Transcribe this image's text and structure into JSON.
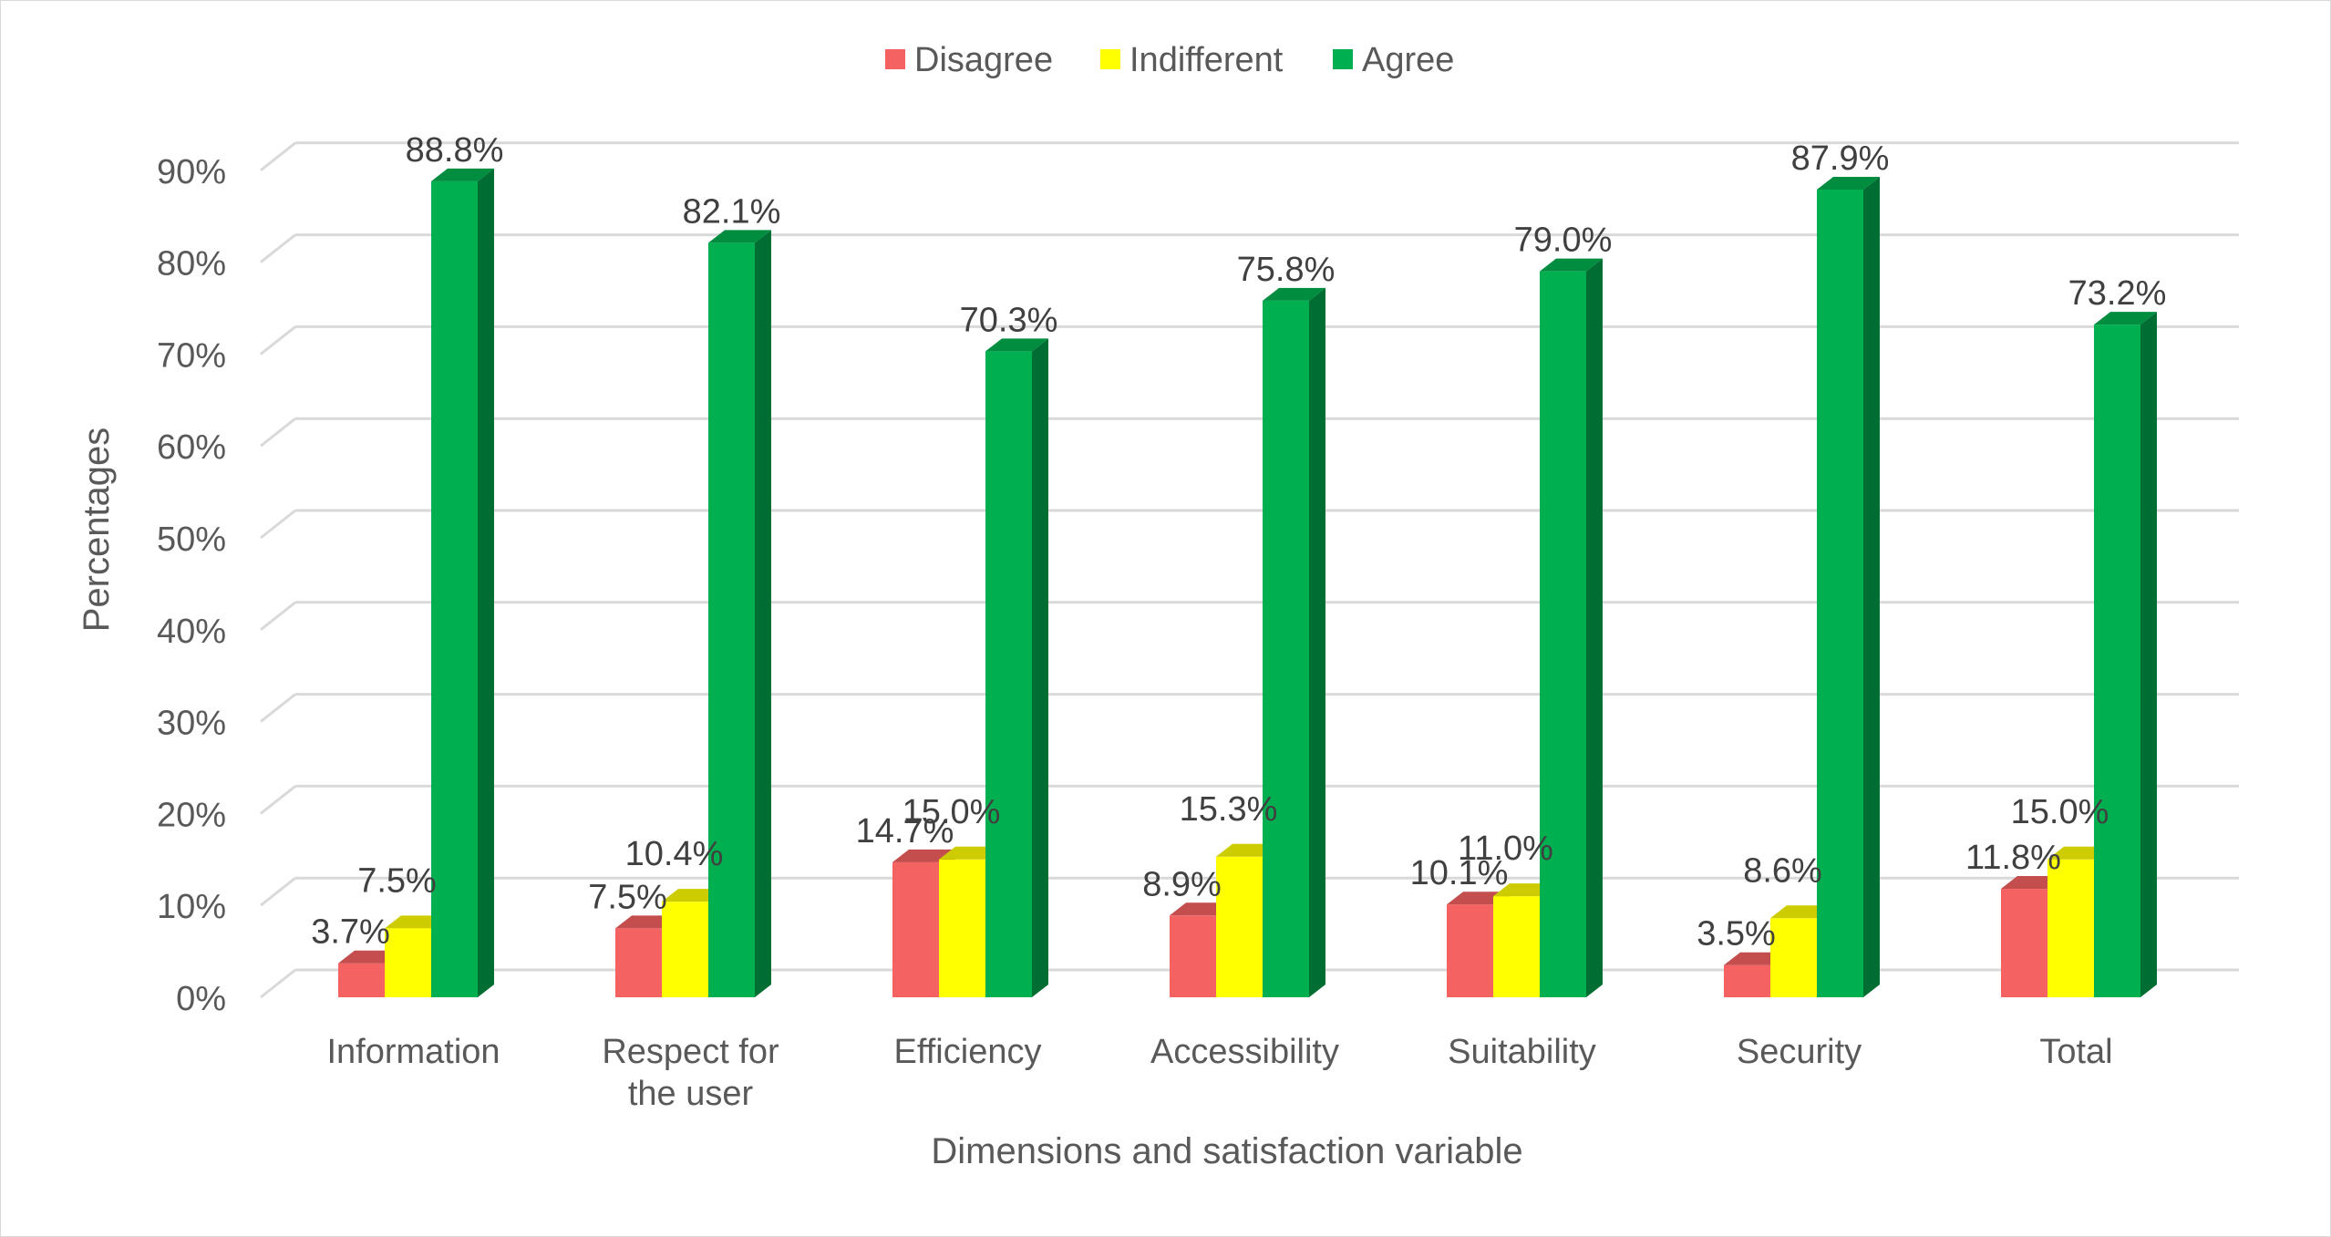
{
  "chart_data": {
    "type": "bar",
    "style": "3d-clustered-column",
    "title": "",
    "xlabel": "Dimensions and satisfaction variable",
    "ylabel": "Percentages",
    "ylim": [
      0,
      90
    ],
    "yticks": [
      "0%",
      "10%",
      "20%",
      "30%",
      "40%",
      "50%",
      "60%",
      "70%",
      "80%",
      "90%"
    ],
    "grid": true,
    "legend_position": "top",
    "categories": [
      [
        "Information"
      ],
      [
        "Respect for",
        "the user"
      ],
      [
        "Efficiency"
      ],
      [
        "Accessibility"
      ],
      [
        "Suitability"
      ],
      [
        "Security"
      ],
      [
        "Total"
      ]
    ],
    "series": [
      {
        "name": "Disagree",
        "color": "#f56262",
        "values": [
          3.7,
          7.5,
          14.7,
          8.9,
          10.1,
          3.5,
          11.8
        ],
        "labels": [
          "3.7%",
          "7.5%",
          "14.7%",
          "8.9%",
          "10.1%",
          "3.5%",
          "11.8%"
        ]
      },
      {
        "name": "Indifferent",
        "color": "#ffff00",
        "values": [
          7.5,
          10.4,
          15.0,
          15.3,
          11.0,
          8.6,
          15.0
        ],
        "labels": [
          "7.5%",
          "10.4%",
          "15.0%",
          "15.3%",
          "11.0%",
          "8.6%",
          "15.0%"
        ]
      },
      {
        "name": "Agree",
        "color": "#00b050",
        "values": [
          88.8,
          82.1,
          70.3,
          75.8,
          79.0,
          87.9,
          73.2
        ],
        "labels": [
          "88.8%",
          "82.1%",
          "70.3%",
          "75.8%",
          "79.0%",
          "87.9%",
          "73.2%"
        ]
      }
    ]
  }
}
